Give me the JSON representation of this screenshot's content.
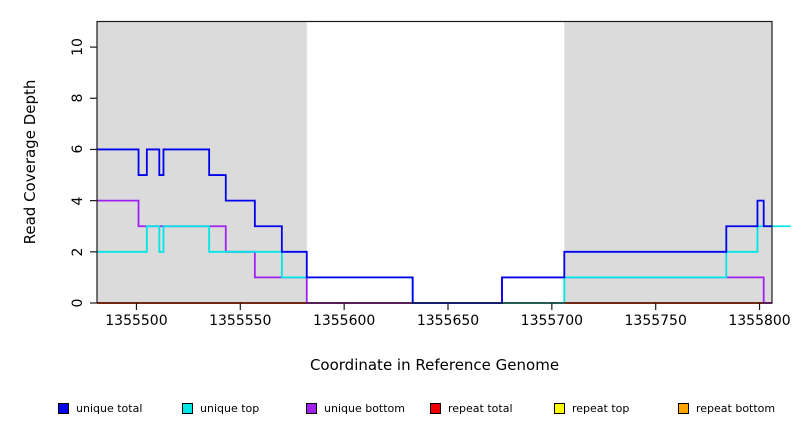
{
  "figure": {
    "background": "#FFFFFF"
  },
  "chart_data": {
    "type": "line",
    "subtype": "step-coverage",
    "title": "",
    "xlabel": "Coordinate in Reference Genome",
    "ylabel": "Read Coverage Depth",
    "xlim": [
      1355481,
      1355806
    ],
    "ylim": [
      0,
      11
    ],
    "x_ticks": [
      1355500,
      1355550,
      1355600,
      1355650,
      1355700,
      1355750,
      1355800
    ],
    "y_ticks": [
      0,
      2,
      4,
      6,
      8,
      10
    ],
    "grid": false,
    "axis_color": "#1A1A1A",
    "repeat_region_fill": "#DBDBDB",
    "repeat_regions": [
      [
        1355481,
        1355582
      ],
      [
        1355706,
        1355806
      ]
    ],
    "legend_position": "bottom",
    "series": [
      {
        "name": "unique total",
        "color": "#0000EE",
        "breaks": [
          1355481,
          1355501,
          1355505,
          1355511,
          1355513,
          1355535,
          1355543,
          1355557,
          1355570,
          1355582,
          1355633,
          1355676,
          1355706,
          1355784,
          1355799,
          1355802,
          1355806
        ],
        "values": [
          6,
          5,
          6,
          5,
          6,
          5,
          4,
          3,
          2,
          1,
          0,
          1,
          2,
          3,
          4,
          3
        ]
      },
      {
        "name": "unique top",
        "color": "#00E5E5",
        "breaks": [
          1355481,
          1355505,
          1355511,
          1355513,
          1355535,
          1355570,
          1355633,
          1355706,
          1355784,
          1355799,
          1355815
        ],
        "values": [
          2,
          3,
          2,
          3,
          2,
          1,
          0,
          1,
          2,
          3
        ]
      },
      {
        "name": "unique bottom",
        "color": "#A020F0",
        "breaks": [
          1355481,
          1355501,
          1355543,
          1355557,
          1355582,
          1355676,
          1355802,
          1355806
        ],
        "values": [
          4,
          3,
          2,
          1,
          0,
          1,
          0
        ]
      },
      {
        "name": "repeat total",
        "color": "#EE0000",
        "breaks": [
          1355481,
          1355806
        ],
        "values": [
          0
        ]
      },
      {
        "name": "repeat top",
        "color": "#FFFF00",
        "breaks": [
          1355481,
          1355806
        ],
        "values": [
          0
        ]
      },
      {
        "name": "repeat bottom",
        "color": "#FFA500",
        "breaks": [
          1355481,
          1355806
        ],
        "values": [
          0
        ]
      }
    ]
  }
}
